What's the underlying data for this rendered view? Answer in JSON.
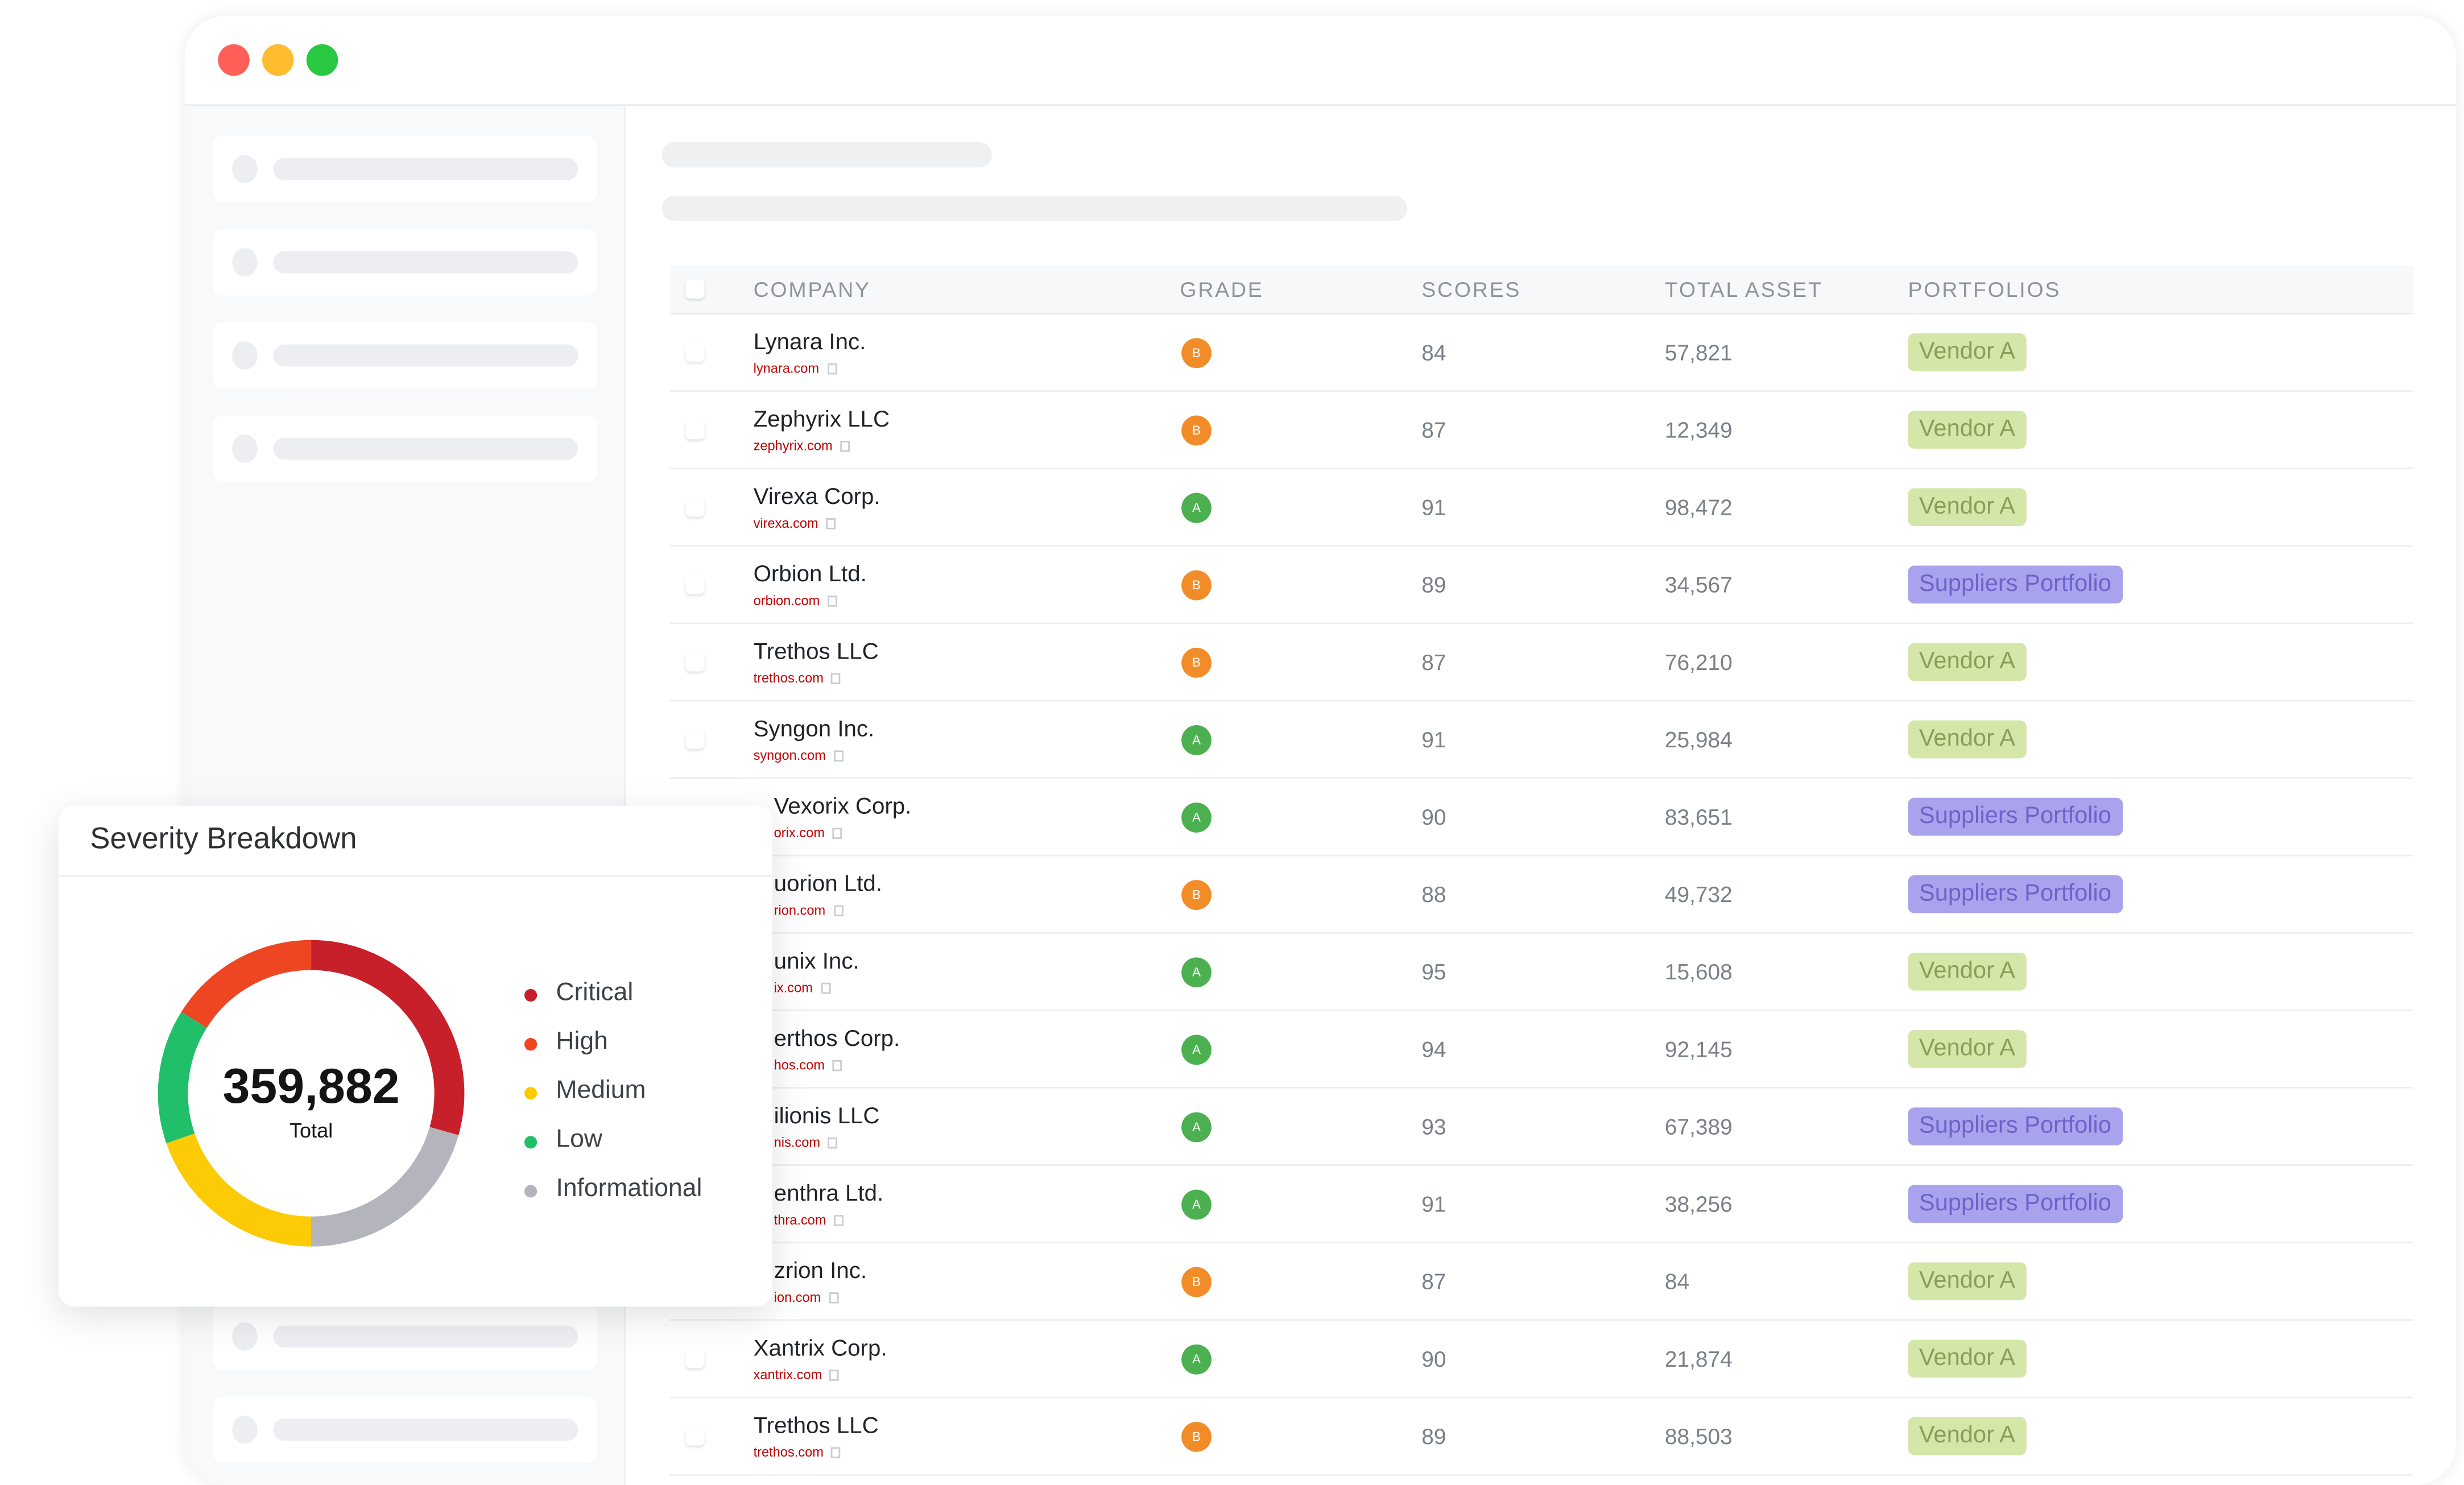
{
  "window": {
    "traffic_lights": [
      "#ff5f57",
      "#febc2e",
      "#28c840"
    ]
  },
  "table": {
    "headers": {
      "company": "COMPANY",
      "grade": "GRADE",
      "scores": "SCORES",
      "total_asset": "TOTAL ASSET",
      "portfolios": "PORTFOLIOS"
    },
    "grade_colors": {
      "A": "#4caf50",
      "B": "#f28c28"
    },
    "portfolio_styles": {
      "Vendor A": {
        "bg": "#d4e6a8",
        "fg": "#8a9e5c"
      },
      "Suppliers Portfolio": {
        "bg": "#a9a3ee",
        "fg": "#6b63c9"
      }
    },
    "rows": [
      {
        "company": "Lynara Inc.",
        "domain": "lynara.com",
        "grade": "B",
        "score": "84",
        "total_asset": "57,821",
        "portfolio": "Vendor A"
      },
      {
        "company": "Zephyrix LLC",
        "domain": "zephyrix.com",
        "grade": "B",
        "score": "87",
        "total_asset": "12,349",
        "portfolio": "Vendor A"
      },
      {
        "company": "Virexa Corp.",
        "domain": "virexa.com",
        "grade": "A",
        "score": "91",
        "total_asset": "98,472",
        "portfolio": "Vendor A"
      },
      {
        "company": "Orbion Ltd.",
        "domain": "orbion.com",
        "grade": "B",
        "score": "89",
        "total_asset": "34,567",
        "portfolio": "Suppliers Portfolio"
      },
      {
        "company": "Trethos LLC",
        "domain": "trethos.com",
        "grade": "B",
        "score": "87",
        "total_asset": "76,210",
        "portfolio": "Vendor A"
      },
      {
        "company": "Syngon Inc.",
        "domain": "syngon.com",
        "grade": "A",
        "score": "91",
        "total_asset": "25,984",
        "portfolio": "Vendor A"
      },
      {
        "company": "Vexorix Corp.",
        "domain": "orix.com",
        "grade": "A",
        "score": "90",
        "total_asset": "83,651",
        "portfolio": "Suppliers Portfolio",
        "partial": true
      },
      {
        "company": "uorion Ltd.",
        "domain": "rion.com",
        "grade": "B",
        "score": "88",
        "total_asset": "49,732",
        "portfolio": "Suppliers Portfolio",
        "partial": true
      },
      {
        "company": "unix Inc.",
        "domain": "ix.com",
        "grade": "A",
        "score": "95",
        "total_asset": "15,608",
        "portfolio": "Vendor A",
        "partial": true
      },
      {
        "company": "erthos Corp.",
        "domain": "hos.com",
        "grade": "A",
        "score": "94",
        "total_asset": "92,145",
        "portfolio": "Vendor A",
        "partial": true
      },
      {
        "company": "ilionis LLC",
        "domain": "nis.com",
        "grade": "A",
        "score": "93",
        "total_asset": "67,389",
        "portfolio": "Suppliers Portfolio",
        "partial": true
      },
      {
        "company": "enthra Ltd.",
        "domain": "thra.com",
        "grade": "A",
        "score": "91",
        "total_asset": "38,256",
        "portfolio": "Suppliers Portfolio",
        "partial": true
      },
      {
        "company": "zrion Inc.",
        "domain": "ion.com",
        "grade": "B",
        "score": "87",
        "total_asset": "84",
        "portfolio": "Vendor A",
        "partial": true
      },
      {
        "company": "Xantrix Corp.",
        "domain": "xantrix.com",
        "grade": "A",
        "score": "90",
        "total_asset": "21,874",
        "portfolio": "Vendor A"
      },
      {
        "company": "Trethos LLC",
        "domain": "trethos.com",
        "grade": "B",
        "score": "89",
        "total_asset": "88,503",
        "portfolio": "Vendor A"
      }
    ]
  },
  "severity": {
    "title": "Severity Breakdown",
    "total": "359,882",
    "total_label": "Total",
    "segments": [
      {
        "label": "Critical",
        "color": "#c8202a",
        "share": 0.294
      },
      {
        "label": "Informational",
        "color": "#b4b4bc",
        "share": 0.206
      },
      {
        "label": "Medium",
        "color": "#fccb05",
        "share": 0.197
      },
      {
        "label": "Low",
        "color": "#22bf6b",
        "share": 0.142
      },
      {
        "label": "High",
        "color": "#ee4523",
        "share": 0.161
      }
    ],
    "legend": [
      {
        "label": "Critical",
        "color": "#c8202a"
      },
      {
        "label": "High",
        "color": "#ee4523"
      },
      {
        "label": "Medium",
        "color": "#fccb05"
      },
      {
        "label": "Low",
        "color": "#22bf6b"
      },
      {
        "label": "Informational",
        "color": "#b4b4bc"
      }
    ]
  }
}
